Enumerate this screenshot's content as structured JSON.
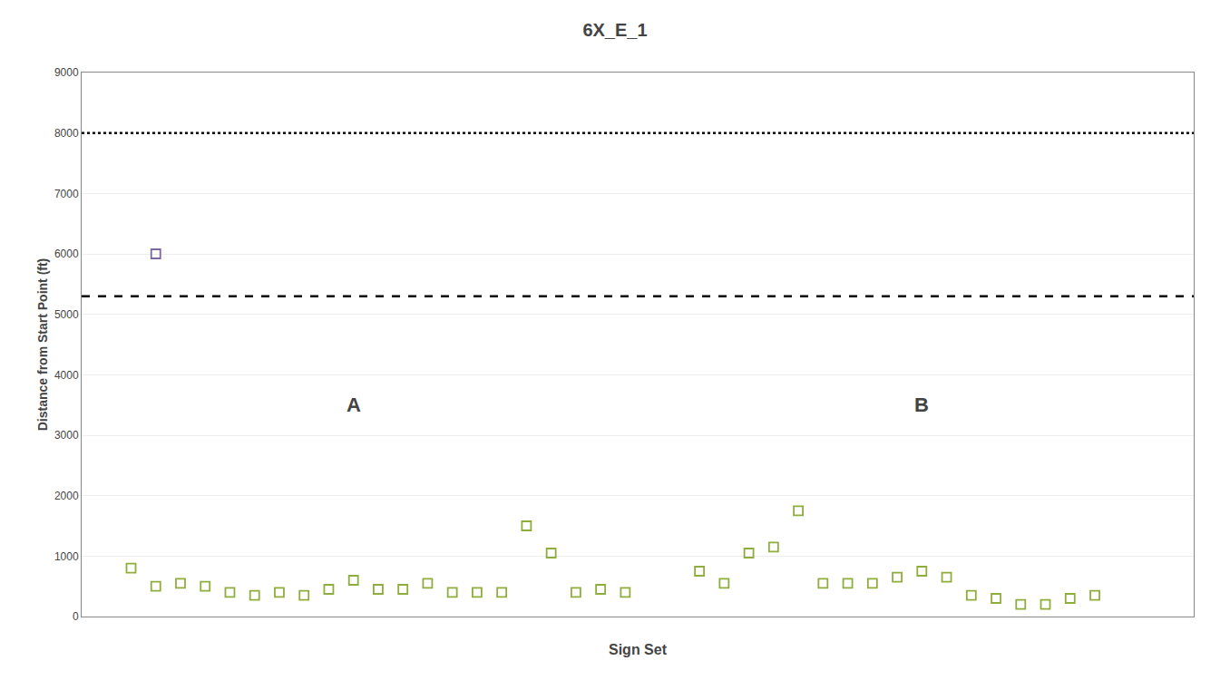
{
  "chart_data": {
    "type": "scatter",
    "title": "6X_E_1",
    "x_label": "Sign Set",
    "y_label": "Distance from Start Point (ft)",
    "xlim": [
      0,
      45
    ],
    "ylim": [
      0,
      9000
    ],
    "yticks": [
      0,
      1000,
      2000,
      3000,
      4000,
      5000,
      6000,
      7000,
      8000,
      9000
    ],
    "tick_labels": "y",
    "grid": true,
    "series": [
      {
        "color": "#7b68a0",
        "marker": "square-open",
        "x": [
          3
        ],
        "values": [
          6000
        ]
      },
      {
        "color": "#8fad3c",
        "marker": "square-open",
        "x": [
          2,
          3,
          4,
          5,
          6,
          7,
          8,
          9,
          10,
          11,
          12,
          13,
          14,
          15,
          16,
          17,
          18,
          19,
          20,
          21,
          22
        ],
        "values": [
          800,
          500,
          550,
          500,
          400,
          350,
          400,
          350,
          450,
          600,
          450,
          450,
          550,
          400,
          400,
          400,
          1500,
          1050,
          400,
          450,
          400
        ]
      },
      {
        "color": "#8fad3c",
        "marker": "square-open",
        "x": [
          25,
          26,
          27,
          28,
          29,
          30,
          31,
          32,
          33,
          34,
          35,
          36,
          37,
          38,
          39,
          40,
          41
        ],
        "values": [
          750,
          550,
          1050,
          1150,
          1750,
          550,
          550,
          550,
          650,
          750,
          650,
          350,
          300,
          200,
          200,
          300,
          350
        ]
      }
    ],
    "reference_lines": [
      {
        "y": 8000,
        "line_style": "dotted",
        "color": "black"
      },
      {
        "y": 5300,
        "line_style": "dashed",
        "color": "black"
      }
    ],
    "annotations": [
      {
        "text": "A",
        "x": 11,
        "y": 3500
      },
      {
        "text": "B",
        "x": 34,
        "y": 3500
      }
    ]
  }
}
